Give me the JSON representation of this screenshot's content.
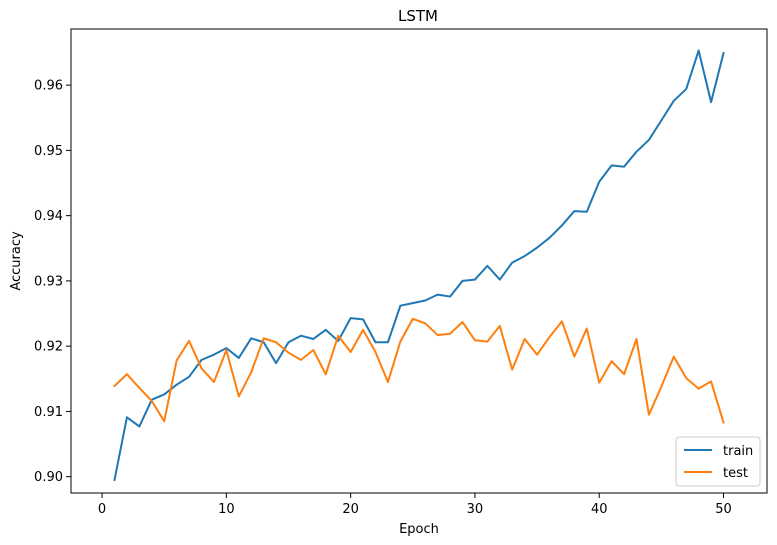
{
  "chart_data": {
    "type": "line",
    "title": "LSTM",
    "xlabel": "Epoch",
    "ylabel": "Accuracy",
    "xlim": [
      -2.5,
      53.5
    ],
    "ylim": [
      0.8975,
      0.9686
    ],
    "xticks": [
      0,
      10,
      20,
      30,
      40,
      50
    ],
    "yticks": [
      0.9,
      0.91,
      0.92,
      0.93,
      0.94,
      0.95,
      0.96
    ],
    "ytick_labels": [
      "0.90",
      "0.91",
      "0.92",
      "0.93",
      "0.94",
      "0.95",
      "0.96"
    ],
    "legend_position": "lower-right",
    "grid": false,
    "x": [
      1,
      2,
      3,
      4,
      5,
      6,
      7,
      8,
      9,
      10,
      11,
      12,
      13,
      14,
      15,
      16,
      17,
      18,
      19,
      20,
      21,
      22,
      23,
      24,
      25,
      26,
      27,
      28,
      29,
      30,
      31,
      32,
      33,
      34,
      35,
      36,
      37,
      38,
      39,
      40,
      41,
      42,
      43,
      44,
      45,
      46,
      47,
      48,
      49,
      50
    ],
    "series": [
      {
        "name": "train",
        "color": "#1f77b4",
        "values": [
          0.8995,
          0.9091,
          0.9077,
          0.9118,
          0.9126,
          0.9141,
          0.9153,
          0.9179,
          0.9187,
          0.9197,
          0.9182,
          0.9212,
          0.9206,
          0.9174,
          0.9206,
          0.9216,
          0.9211,
          0.9225,
          0.9208,
          0.9243,
          0.9241,
          0.9206,
          0.9206,
          0.9262,
          0.9266,
          0.927,
          0.9279,
          0.9276,
          0.93,
          0.9302,
          0.9323,
          0.9302,
          0.9328,
          0.9338,
          0.9351,
          0.9366,
          0.9385,
          0.9407,
          0.9406,
          0.9452,
          0.9477,
          0.9475,
          0.9498,
          0.9516,
          0.9546,
          0.9576,
          0.9594,
          0.9653,
          0.9574,
          0.9649
        ]
      },
      {
        "name": "test",
        "color": "#ff7f0e",
        "values": [
          0.9139,
          0.9157,
          0.9136,
          0.9116,
          0.9085,
          0.9178,
          0.9208,
          0.9166,
          0.9145,
          0.9194,
          0.9123,
          0.916,
          0.9212,
          0.9206,
          0.919,
          0.9179,
          0.9194,
          0.9157,
          0.9216,
          0.9191,
          0.9225,
          0.9191,
          0.9145,
          0.9207,
          0.9242,
          0.9235,
          0.9217,
          0.9219,
          0.9237,
          0.9209,
          0.9207,
          0.9231,
          0.9164,
          0.9211,
          0.9187,
          0.9214,
          0.9238,
          0.9184,
          0.9227,
          0.9144,
          0.9177,
          0.9157,
          0.9211,
          0.9095,
          0.9138,
          0.9184,
          0.9151,
          0.9135,
          0.9146,
          0.9083
        ]
      }
    ]
  }
}
